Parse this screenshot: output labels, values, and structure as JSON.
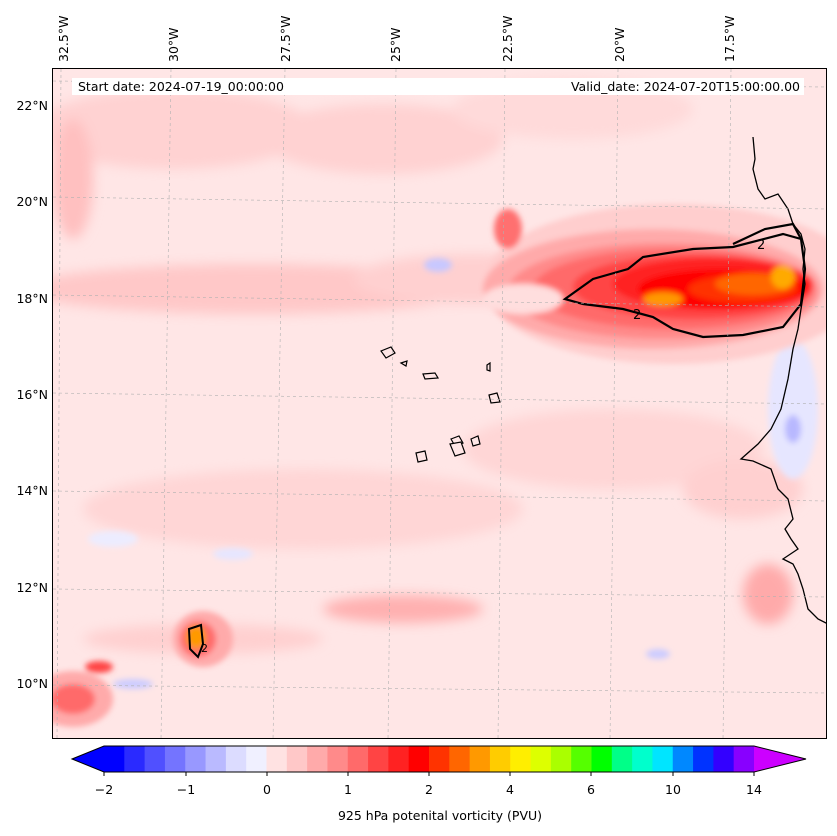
{
  "info": {
    "start_date": "Start date: 2024-07-19_00:00:00",
    "valid_date": "Valid_date: 2024-07-20T15:00:00.00"
  },
  "lon_labels": [
    "32.5°W",
    "30°W",
    "27.5°W",
    "25°W",
    "22.5°W",
    "20°W",
    "17.5°W"
  ],
  "lat_labels": [
    "22°N",
    "20°N",
    "18°N",
    "16°N",
    "14°N",
    "12°N",
    "10°N"
  ],
  "contour_label": "2",
  "colorbar": {
    "label": "925 hPa potenital vorticity (PVU)",
    "ticks": [
      "−2",
      "−1",
      "0",
      "1",
      "2",
      "4",
      "6",
      "10",
      "14"
    ],
    "colors": [
      "#0000ff",
      "#2a2aff",
      "#5050ff",
      "#7474ff",
      "#9898ff",
      "#babaff",
      "#dcdcff",
      "#f0f0ff",
      "#ffe2e2",
      "#ffc8c8",
      "#ffaaaa",
      "#ff8a8a",
      "#ff6a6a",
      "#ff4444",
      "#ff2222",
      "#ff0000",
      "#ff3300",
      "#ff6600",
      "#ff9900",
      "#ffcc00",
      "#ffee00",
      "#ddff00",
      "#aaff00",
      "#55ff00",
      "#00ff00",
      "#00ff88",
      "#00ffcc",
      "#00e5ff",
      "#0088ff",
      "#0033ff",
      "#3300ff",
      "#8800ff"
    ],
    "extend_low": "#0000ff",
    "extend_high": "#cc00ff"
  }
}
